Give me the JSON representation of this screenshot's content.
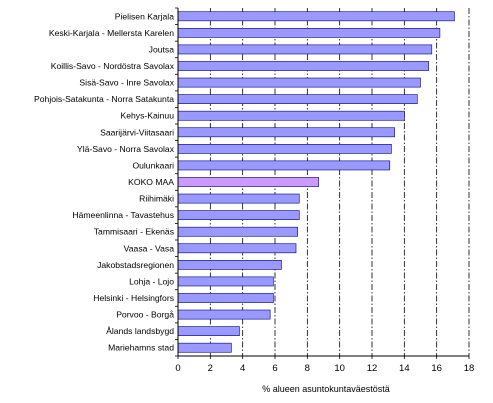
{
  "chart_data": {
    "type": "bar",
    "orientation": "horizontal",
    "categories": [
      "Pielisen Karjala",
      "Keski-Karjala - Mellersta Karelen",
      "Joutsa",
      "Koillis-Savo - Nordöstra Savolax",
      "Sisä-Savo - Inre Savolax",
      "Pohjois-Satakunta - Norra Satakunta",
      "Kehys-Kainuu",
      "Saarijärvi-Viitasaari",
      "Ylä-Savo - Norra Savolax",
      "Oulunkaari",
      "KOKO MAA",
      "Riihimäki",
      "Hämeenlinna - Tavastehus",
      "Tammisaari - Ekenäs",
      "Vaasa - Vasa",
      "Jakobstadsregionen",
      "Lohja - Lojo",
      "Helsinki - Helsingfors",
      "Porvoo - Borgå",
      "Ålands landsbygd",
      "Mariehamns stad"
    ],
    "values": [
      17.1,
      16.2,
      15.7,
      15.5,
      15.0,
      14.8,
      14.0,
      13.4,
      13.2,
      13.1,
      8.7,
      7.5,
      7.5,
      7.4,
      7.3,
      6.4,
      5.9,
      5.9,
      5.7,
      3.8,
      3.3
    ],
    "highlight_category": "KOKO MAA",
    "xlabel": "% alueen asuntokuntaväestöstä",
    "xlim": [
      0,
      18
    ],
    "xticks": [
      0,
      2,
      4,
      6,
      8,
      10,
      12,
      14,
      16,
      18
    ],
    "grid": "vertical dash-dot lines",
    "colors": {
      "bar": "#9999ff",
      "highlight_bar": "#cc99ff",
      "bar_edge": "#000080",
      "grid": "#000000"
    }
  }
}
